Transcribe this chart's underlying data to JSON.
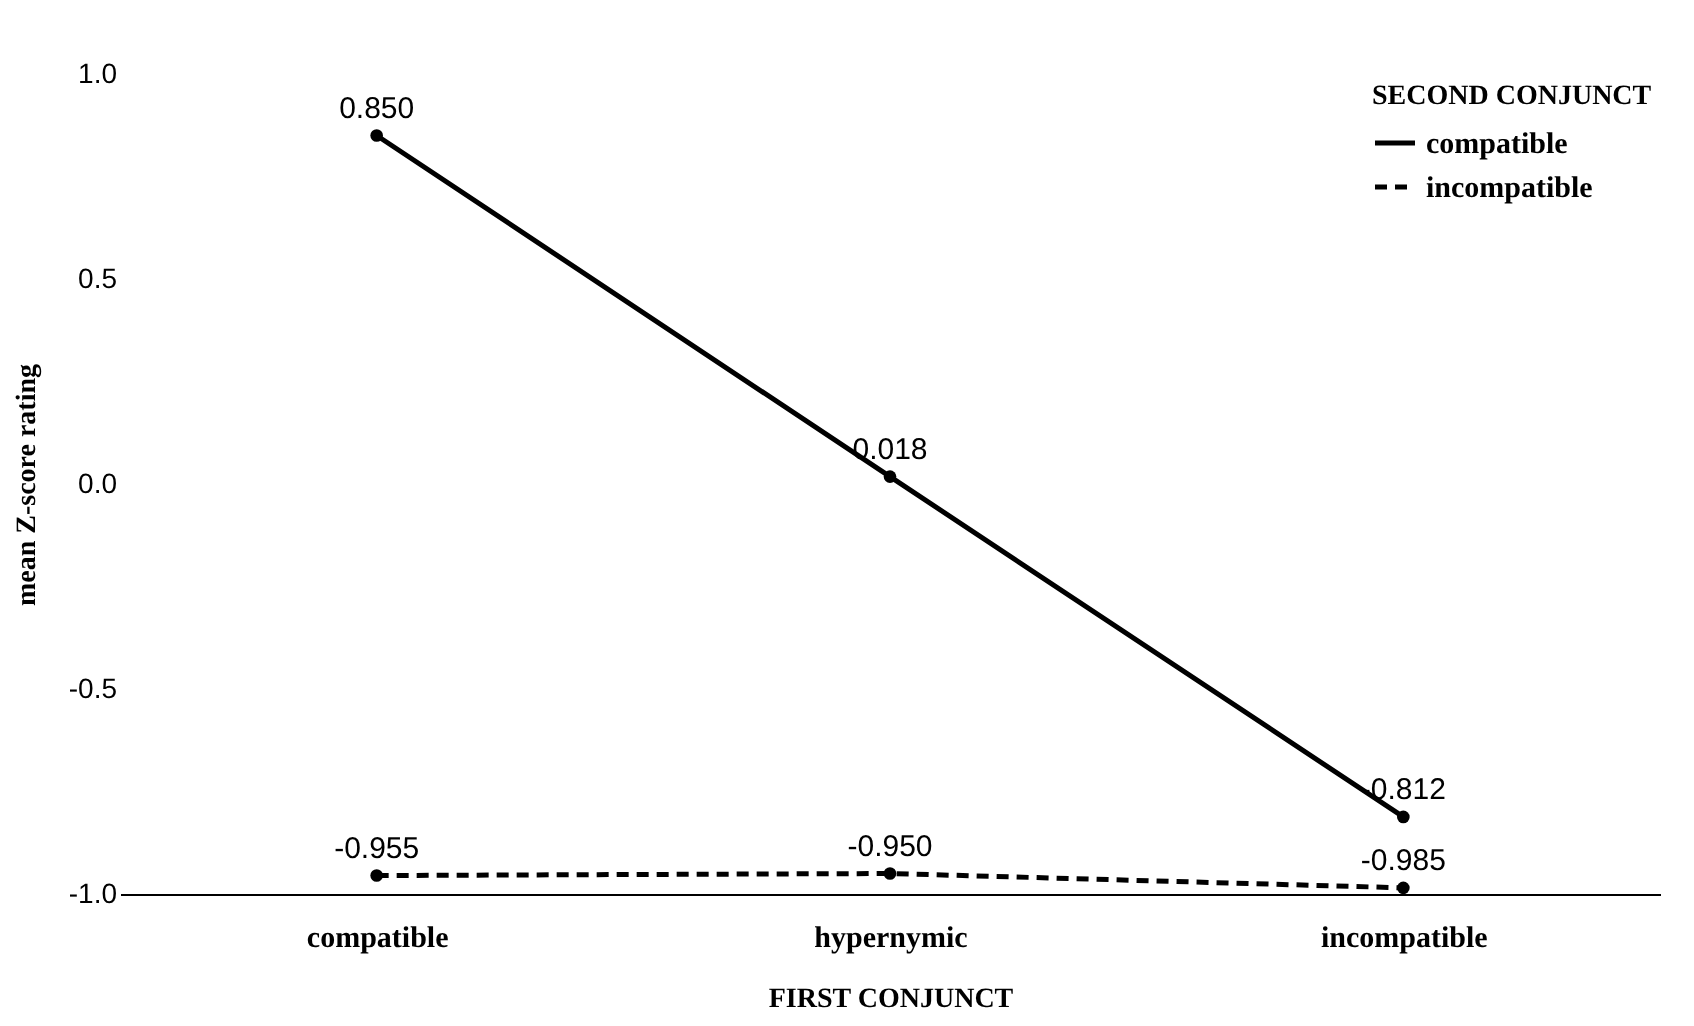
{
  "chart_data": {
    "type": "line",
    "xlabel": "FIRST CONJUNCT",
    "ylabel": "mean Z-score rating",
    "legend_title": "SECOND CONJUNCT",
    "categories": [
      "compatible",
      "hypernymic",
      "incompatible"
    ],
    "series": [
      {
        "name": "compatible",
        "color": "#000000",
        "line_style": "solid",
        "values": [
          0.85,
          0.018,
          -0.812
        ],
        "value_labels": [
          "0.850",
          "0.018",
          "-0.812"
        ]
      },
      {
        "name": "incompatible",
        "color": "#000000",
        "line_style": "dashed",
        "values": [
          -0.955,
          -0.95,
          -0.985
        ],
        "value_labels": [
          "-0.955",
          "-0.950",
          "-0.985"
        ]
      }
    ],
    "ylim": [
      -1,
      1
    ],
    "yticks": [
      {
        "value": -1,
        "label": "-1.0"
      },
      {
        "value": -0.5,
        "label": "-0.5"
      },
      {
        "value": 0,
        "label": "0.0"
      },
      {
        "value": 0.5,
        "label": "0.5"
      },
      {
        "value": 1,
        "label": "1.0"
      }
    ],
    "grid": false,
    "legend": "top right",
    "marker": "circle"
  }
}
